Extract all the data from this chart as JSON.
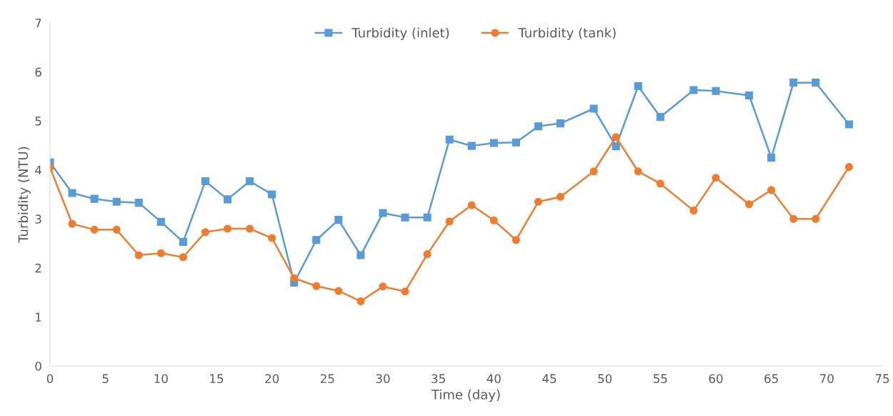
{
  "chart_data": {
    "type": "line",
    "xlabel": "Time (day)",
    "ylabel": "Turbidity (NTU)",
    "xlim": [
      0,
      75
    ],
    "xticks": [
      0,
      5,
      10,
      15,
      20,
      25,
      30,
      35,
      40,
      45,
      50,
      55,
      60,
      65,
      70,
      75
    ],
    "ylim": [
      0,
      7
    ],
    "yticks": [
      0,
      1,
      2,
      3,
      4,
      5,
      6,
      7
    ],
    "grid": false,
    "legend": "top",
    "line_style": "solid",
    "x": [
      0,
      2,
      4,
      6,
      8,
      10,
      12,
      14,
      16,
      18,
      20,
      22,
      24,
      26,
      28,
      30,
      32,
      34,
      36,
      38,
      40,
      42,
      44,
      46,
      49,
      51,
      53,
      55,
      58,
      60,
      63,
      65,
      67,
      69,
      72
    ],
    "series": [
      {
        "name": "Turbidity (inlet)",
        "color": "#5b9bd5",
        "marker": "square",
        "values": [
          4.15,
          3.53,
          3.41,
          3.35,
          3.33,
          2.94,
          2.53,
          3.77,
          3.4,
          3.77,
          3.5,
          1.7,
          2.57,
          2.98,
          2.26,
          3.12,
          3.03,
          3.03,
          4.62,
          4.49,
          4.55,
          4.56,
          4.89,
          4.95,
          5.25,
          4.48,
          5.71,
          5.08,
          5.63,
          5.61,
          5.52,
          4.25,
          5.78,
          5.78,
          4.93
        ]
      },
      {
        "name": "Turbidity (tank)",
        "color": "#ed7d31",
        "marker": "circle",
        "values": [
          4.05,
          2.9,
          2.78,
          2.78,
          2.26,
          2.3,
          2.22,
          2.73,
          2.8,
          2.8,
          2.61,
          1.79,
          1.63,
          1.53,
          1.32,
          1.62,
          1.52,
          2.28,
          2.95,
          3.28,
          2.97,
          2.57,
          3.35,
          3.45,
          3.97,
          4.67,
          3.97,
          3.72,
          3.17,
          3.84,
          3.3,
          3.59,
          3.0,
          3.0,
          4.06
        ]
      }
    ]
  }
}
